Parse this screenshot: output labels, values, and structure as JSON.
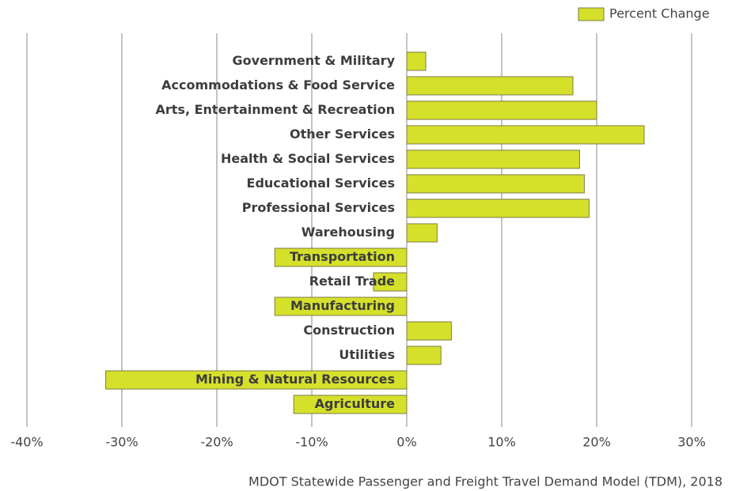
{
  "chart_data": {
    "type": "bar",
    "orientation": "horizontal",
    "categories": [
      "Government & Military",
      "Accommodations & Food Service",
      "Arts, Entertainment & Recreation",
      "Other Services",
      "Health & Social Services",
      "Educational Services",
      "Professional Services",
      "Warehousing",
      "Transportation",
      "Retail Trade",
      "Manufacturing",
      "Construction",
      "Utilities",
      "Mining & Natural Resources",
      "Agriculture"
    ],
    "series": [
      {
        "name": "Percent Change",
        "color": "#d5e02b",
        "values": [
          2,
          17.5,
          20,
          25,
          18.2,
          18.7,
          19.2,
          3.2,
          -13.9,
          -3.5,
          -13.9,
          4.7,
          3.6,
          -31.7,
          -11.9
        ]
      }
    ],
    "xlim": [
      -40,
      30
    ],
    "xticks": [
      {
        "value": -40,
        "label": "-40%"
      },
      {
        "value": -30,
        "label": "-30%"
      },
      {
        "value": -20,
        "label": "-20%"
      },
      {
        "value": -10,
        "label": "-10%"
      },
      {
        "value": 0,
        "label": "0%"
      },
      {
        "value": 10,
        "label": "10%"
      },
      {
        "value": 20,
        "label": "20%"
      },
      {
        "value": 30,
        "label": "30%"
      }
    ],
    "grid": true,
    "legend": "top-right",
    "source": "MDOT Statewide Passenger and Freight Travel Demand Model (TDM), 2018"
  }
}
